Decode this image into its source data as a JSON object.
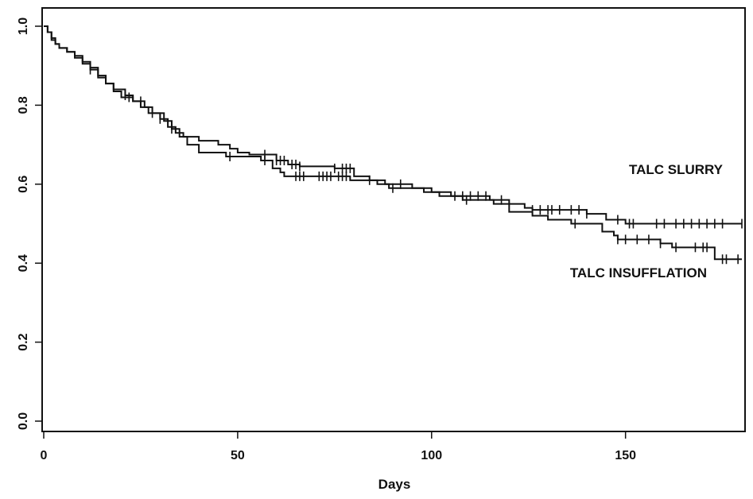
{
  "chart_data": {
    "type": "line",
    "subtype": "kaplan-meier step",
    "title": "",
    "xlabel": "Days",
    "ylabel": "",
    "xlim": [
      0,
      180
    ],
    "ylim": [
      0,
      1.0
    ],
    "x_ticks": [
      0,
      50,
      100,
      150
    ],
    "x_tick_labels": [
      "0",
      "50",
      "100",
      "150"
    ],
    "y_ticks": [
      0.0,
      0.2,
      0.4,
      0.6,
      0.8,
      1.0
    ],
    "y_tick_labels": [
      "0.0",
      "0.2",
      "0.4",
      "0.6",
      "0.8",
      "1.0"
    ],
    "grid": false,
    "legend": "none",
    "series": [
      {
        "name": "TALC SLURRY",
        "steps": [
          [
            0,
            1.0
          ],
          [
            1,
            0.985
          ],
          [
            2,
            0.97
          ],
          [
            3,
            0.955
          ],
          [
            4,
            0.945
          ],
          [
            6,
            0.935
          ],
          [
            8,
            0.925
          ],
          [
            10,
            0.91
          ],
          [
            12,
            0.895
          ],
          [
            14,
            0.875
          ],
          [
            16,
            0.855
          ],
          [
            18,
            0.84
          ],
          [
            21,
            0.825
          ],
          [
            23,
            0.81
          ],
          [
            25,
            0.795
          ],
          [
            27,
            0.78
          ],
          [
            30,
            0.765
          ],
          [
            32,
            0.745
          ],
          [
            34,
            0.73
          ],
          [
            36,
            0.72
          ],
          [
            40,
            0.71
          ],
          [
            45,
            0.7
          ],
          [
            48,
            0.69
          ],
          [
            50,
            0.68
          ],
          [
            53,
            0.675
          ],
          [
            60,
            0.66
          ],
          [
            63,
            0.65
          ],
          [
            66,
            0.645
          ],
          [
            75,
            0.64
          ],
          [
            80,
            0.62
          ],
          [
            84,
            0.61
          ],
          [
            88,
            0.6
          ],
          [
            95,
            0.59
          ],
          [
            100,
            0.58
          ],
          [
            105,
            0.57
          ],
          [
            115,
            0.56
          ],
          [
            120,
            0.55
          ],
          [
            124,
            0.54
          ],
          [
            126,
            0.535
          ],
          [
            140,
            0.525
          ],
          [
            145,
            0.51
          ],
          [
            150,
            0.5
          ],
          [
            180,
            0.5
          ]
        ],
        "censored_times": [
          21,
          28,
          30,
          57,
          60,
          61,
          62,
          64,
          65,
          66,
          75,
          77,
          78,
          79,
          84,
          92,
          106,
          108,
          110,
          112,
          114,
          118,
          126,
          128,
          130,
          131,
          133,
          136,
          138,
          140,
          148,
          151,
          152,
          158,
          160,
          163,
          165,
          167,
          169,
          171,
          173,
          175,
          180
        ]
      },
      {
        "name": "TALC INSUFFLATION",
        "steps": [
          [
            0,
            1.0
          ],
          [
            1,
            0.985
          ],
          [
            2,
            0.965
          ],
          [
            3,
            0.955
          ],
          [
            4,
            0.945
          ],
          [
            6,
            0.935
          ],
          [
            8,
            0.92
          ],
          [
            10,
            0.905
          ],
          [
            12,
            0.89
          ],
          [
            14,
            0.87
          ],
          [
            16,
            0.855
          ],
          [
            18,
            0.835
          ],
          [
            20,
            0.82
          ],
          [
            23,
            0.81
          ],
          [
            26,
            0.795
          ],
          [
            28,
            0.78
          ],
          [
            31,
            0.76
          ],
          [
            33,
            0.74
          ],
          [
            35,
            0.72
          ],
          [
            37,
            0.7
          ],
          [
            40,
            0.68
          ],
          [
            47,
            0.67
          ],
          [
            56,
            0.66
          ],
          [
            59,
            0.64
          ],
          [
            61,
            0.63
          ],
          [
            62,
            0.62
          ],
          [
            79,
            0.61
          ],
          [
            86,
            0.6
          ],
          [
            89,
            0.59
          ],
          [
            98,
            0.58
          ],
          [
            102,
            0.57
          ],
          [
            108,
            0.56
          ],
          [
            116,
            0.55
          ],
          [
            120,
            0.53
          ],
          [
            126,
            0.52
          ],
          [
            130,
            0.51
          ],
          [
            136,
            0.5
          ],
          [
            144,
            0.48
          ],
          [
            147,
            0.47
          ],
          [
            148,
            0.46
          ],
          [
            159,
            0.45
          ],
          [
            162,
            0.44
          ],
          [
            173,
            0.41
          ],
          [
            180,
            0.41
          ]
        ],
        "censored_times": [
          12,
          22,
          25,
          33,
          48,
          57,
          65,
          66,
          67,
          71,
          72,
          73,
          74,
          76,
          77,
          78,
          90,
          109,
          137,
          148,
          150,
          153,
          156,
          159,
          163,
          168,
          170,
          171,
          175,
          176,
          179
        ]
      }
    ],
    "annotations": [
      "TALC SLURRY",
      "TALC INSUFFLATION"
    ]
  }
}
